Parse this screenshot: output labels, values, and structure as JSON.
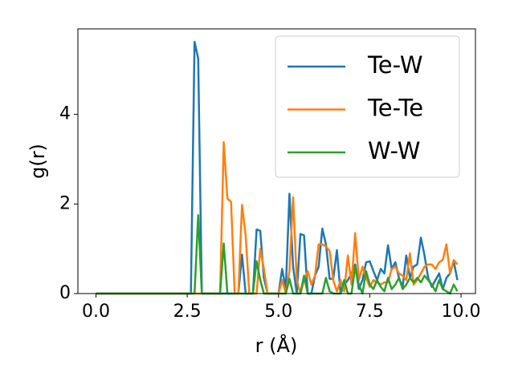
{
  "chart_data": {
    "type": "line",
    "x_label": "r (Å)",
    "y_label": "g(r)",
    "x": [
      0,
      0.1,
      0.2,
      0.3,
      0.4,
      0.5,
      0.6,
      0.7,
      0.8,
      0.9,
      1,
      1.1,
      1.2,
      1.3,
      1.4,
      1.5,
      1.6,
      1.7,
      1.8,
      1.9,
      2,
      2.1,
      2.2,
      2.3,
      2.4,
      2.5,
      2.6,
      2.7,
      2.8,
      2.9,
      3,
      3.1,
      3.2,
      3.3,
      3.4,
      3.5,
      3.6,
      3.7,
      3.8,
      3.9,
      4,
      4.1,
      4.2,
      4.3,
      4.4,
      4.5,
      4.6,
      4.7,
      4.8,
      4.9,
      5,
      5.1,
      5.2,
      5.3,
      5.4,
      5.5,
      5.6,
      5.7,
      5.8,
      5.9,
      6,
      6.1,
      6.2,
      6.3,
      6.4,
      6.5,
      6.6,
      6.7,
      6.8,
      6.9,
      7,
      7.1,
      7.2,
      7.3,
      7.4,
      7.5,
      7.6,
      7.7,
      7.8,
      7.9,
      8,
      8.1,
      8.2,
      8.3,
      8.4,
      8.5,
      8.6,
      8.7,
      8.8,
      8.9,
      9,
      9.1,
      9.2,
      9.3,
      9.4,
      9.5,
      9.6,
      9.7,
      9.8,
      9.9
    ],
    "series": [
      {
        "name": "Te-W",
        "color": "#1f77b4",
        "values": [
          0,
          0,
          0,
          0,
          0,
          0,
          0,
          0,
          0,
          0,
          0,
          0,
          0,
          0,
          0,
          0,
          0,
          0,
          0,
          0,
          0,
          0,
          0,
          0,
          0,
          0,
          0,
          5.62,
          5.25,
          0,
          0,
          0,
          0,
          0,
          0,
          0,
          0,
          0,
          0,
          0,
          0.87,
          0,
          0,
          0,
          1.43,
          1.4,
          0.35,
          0,
          0,
          0,
          0,
          0.55,
          0.1,
          2.23,
          0.6,
          0,
          1.33,
          1.3,
          0,
          0,
          0.4,
          0.6,
          1.45,
          1.1,
          0.33,
          0.33,
          0.97,
          0,
          0.2,
          0.3,
          0.45,
          0.65,
          0.1,
          0.3,
          0.7,
          0.72,
          0.5,
          0.3,
          0.55,
          0.45,
          1.08,
          0.55,
          0.7,
          0.35,
          0.15,
          0.85,
          0.35,
          0.6,
          0.65,
          1.25,
          0.85,
          0.35,
          0.15,
          0.3,
          0.45,
          0.1,
          0.35,
          0.45,
          0.72,
          0.3
        ]
      },
      {
        "name": "Te-Te",
        "color": "#ff7f0e",
        "values": [
          0,
          0,
          0,
          0,
          0,
          0,
          0,
          0,
          0,
          0,
          0,
          0,
          0,
          0,
          0,
          0,
          0,
          0,
          0,
          0,
          0,
          0,
          0,
          0,
          0,
          0,
          0,
          0,
          0,
          0,
          0,
          0,
          0,
          0,
          0,
          3.38,
          2.12,
          2.05,
          0,
          0,
          1.98,
          1.3,
          0,
          0,
          0,
          1.0,
          0.55,
          0,
          0,
          0,
          0,
          0.3,
          0,
          0.5,
          2.15,
          0.3,
          0,
          0.3,
          0.5,
          0.2,
          0.4,
          1.1,
          1.1,
          1.05,
          0.95,
          0.3,
          0.05,
          0.3,
          0.05,
          0.85,
          0.2,
          1.35,
          0.3,
          0.6,
          0.35,
          0.15,
          0.3,
          0.25,
          0.2,
          0.25,
          0.25,
          0.55,
          0.6,
          0.45,
          0.4,
          0.3,
          0.9,
          0.2,
          0.3,
          0.45,
          0.6,
          0.65,
          0.65,
          0.55,
          0.7,
          0.75,
          1.1,
          0.45,
          0.75,
          0.65
        ]
      },
      {
        "name": "W-W",
        "color": "#2ca02c",
        "values": [
          0,
          0,
          0,
          0,
          0,
          0,
          0,
          0,
          0,
          0,
          0,
          0,
          0,
          0,
          0,
          0,
          0,
          0,
          0,
          0,
          0,
          0,
          0,
          0,
          0,
          0,
          0,
          0,
          1.75,
          0,
          0,
          0,
          0,
          0,
          0,
          1.12,
          0,
          0,
          0,
          0,
          0,
          0,
          0,
          0,
          0.72,
          0.3,
          0,
          0,
          0,
          0,
          0,
          0,
          0,
          0.33,
          0,
          0,
          0,
          0.4,
          0,
          0,
          0,
          0,
          0,
          0.35,
          0.05,
          0,
          0,
          0,
          0.3,
          0,
          0,
          0.6,
          0.2,
          0,
          0.5,
          0.2,
          0.1,
          0.3,
          0.15,
          0.05,
          0.35,
          0.1,
          0.2,
          0.35,
          0.1,
          0.2,
          0.35,
          0.25,
          0.35,
          0.25,
          0.4,
          0.3,
          0.2,
          0.05,
          0.3,
          0.1,
          0.05,
          0,
          0.2,
          0.05
        ]
      }
    ],
    "xlim": [
      -0.495,
      10.395
    ],
    "ylim": [
      0,
      5.91
    ],
    "xticks": [
      {
        "value": 0,
        "label": "0.0"
      },
      2.5,
      {
        "value": 5,
        "label": "5.0"
      },
      7.5,
      {
        "value": 10,
        "label": "10.0"
      }
    ],
    "yticks": [
      0,
      2,
      4
    ],
    "legend": "upper right",
    "grid": false
  }
}
